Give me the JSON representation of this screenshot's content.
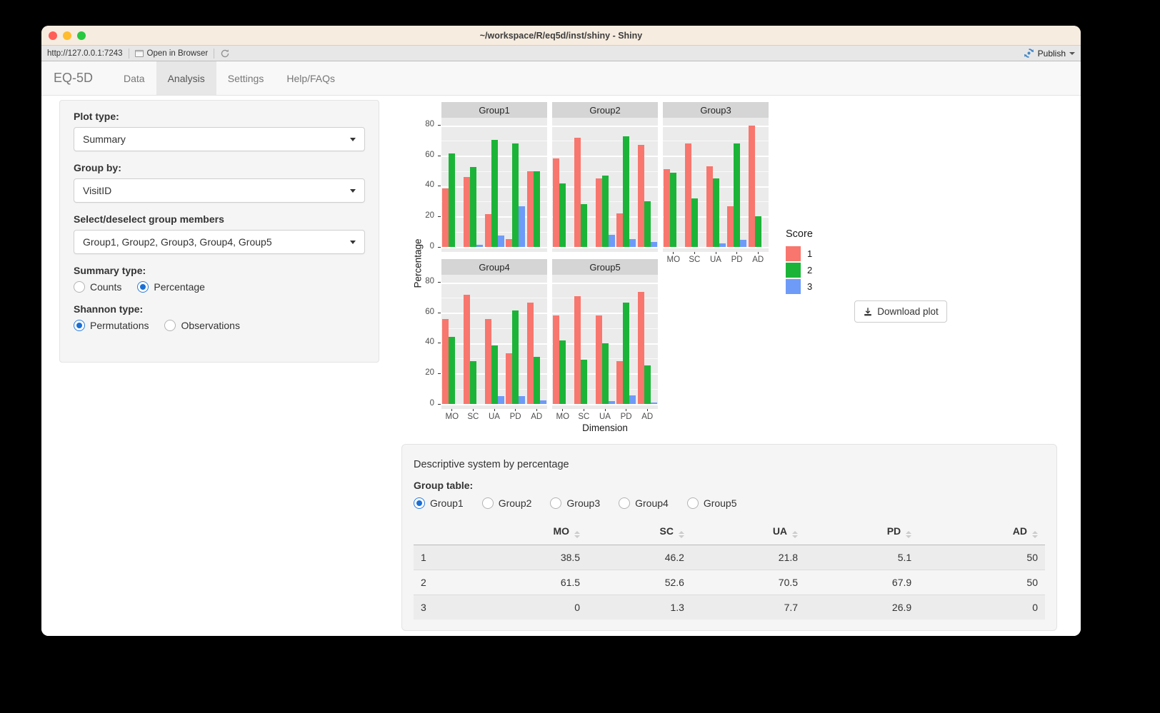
{
  "window": {
    "title": "~/workspace/R/eq5d/inst/shiny - Shiny",
    "url": "http://127.0.0.1:7243",
    "open_in_browser": "Open in Browser",
    "publish": "Publish"
  },
  "navbar": {
    "brand": "EQ-5D",
    "tabs": [
      {
        "label": "Data",
        "active": false
      },
      {
        "label": "Analysis",
        "active": true
      },
      {
        "label": "Settings",
        "active": false
      },
      {
        "label": "Help/FAQs",
        "active": false
      }
    ]
  },
  "sidebar": {
    "plot_type_label": "Plot type:",
    "plot_type_value": "Summary",
    "group_by_label": "Group by:",
    "group_by_value": "VisitID",
    "members_label": "Select/deselect group members",
    "members_value": "Group1, Group2, Group3, Group4, Group5",
    "summary_type_label": "Summary type:",
    "summary_options": [
      {
        "label": "Counts",
        "selected": false
      },
      {
        "label": "Percentage",
        "selected": true
      }
    ],
    "shannon_type_label": "Shannon type:",
    "shannon_options": [
      {
        "label": "Permutations",
        "selected": true
      },
      {
        "label": "Observations",
        "selected": false
      }
    ]
  },
  "chart_data": {
    "type": "bar",
    "facets": [
      "Group1",
      "Group2",
      "Group3",
      "Group4",
      "Group5"
    ],
    "categories": [
      "MO",
      "SC",
      "UA",
      "PD",
      "AD"
    ],
    "series_names": [
      "1",
      "2",
      "3"
    ],
    "colors": {
      "1": "#F8766D",
      "2": "#1CB438",
      "3": "#6E9BF8"
    },
    "legend_title": "Score",
    "xlabel": "Dimension",
    "ylabel": "Percentage",
    "yticks": [
      0,
      20,
      40,
      60,
      80
    ],
    "ylim": [
      0,
      85
    ],
    "grid": "white major+minor on grey panel",
    "legend_position": "right",
    "groups": {
      "Group1": {
        "1": [
          38.5,
          46.2,
          21.8,
          5.1,
          50
        ],
        "2": [
          61.5,
          52.6,
          70.5,
          67.9,
          50
        ],
        "3": [
          0,
          1.3,
          7.7,
          26.9,
          0
        ]
      },
      "Group2": {
        "1": [
          58,
          72,
          45,
          22,
          67
        ],
        "2": [
          42,
          28,
          47,
          73,
          30
        ],
        "3": [
          0,
          0,
          8,
          5,
          3.5
        ]
      },
      "Group3": {
        "1": [
          51,
          68,
          53,
          27,
          80
        ],
        "2": [
          49,
          32,
          45,
          68,
          20
        ],
        "3": [
          0,
          0,
          2.5,
          4.5,
          0
        ]
      },
      "Group4": {
        "1": [
          56,
          72,
          56,
          33.5,
          66.5
        ],
        "2": [
          44,
          28,
          38.5,
          61.5,
          31
        ],
        "3": [
          0,
          0,
          5,
          5,
          2.5
        ]
      },
      "Group5": {
        "1": [
          58,
          71,
          58,
          28,
          73.5
        ],
        "2": [
          42,
          29,
          40,
          66.5,
          25.5
        ],
        "3": [
          0,
          0,
          2,
          5.5,
          1
        ]
      }
    }
  },
  "download_button": "Download plot",
  "bottom": {
    "title": "Descriptive system by percentage",
    "group_table_label": "Group table:",
    "group_options": [
      {
        "label": "Group1",
        "selected": true
      },
      {
        "label": "Group2",
        "selected": false
      },
      {
        "label": "Group3",
        "selected": false
      },
      {
        "label": "Group4",
        "selected": false
      },
      {
        "label": "Group5",
        "selected": false
      }
    ],
    "table": {
      "columns": [
        "MO",
        "SC",
        "UA",
        "PD",
        "AD"
      ],
      "rows": [
        {
          "name": "1",
          "values": [
            "38.5",
            "46.2",
            "21.8",
            "5.1",
            "50"
          ]
        },
        {
          "name": "2",
          "values": [
            "61.5",
            "52.6",
            "70.5",
            "67.9",
            "50"
          ]
        },
        {
          "name": "3",
          "values": [
            "0",
            "1.3",
            "7.7",
            "26.9",
            "0"
          ]
        }
      ]
    }
  }
}
